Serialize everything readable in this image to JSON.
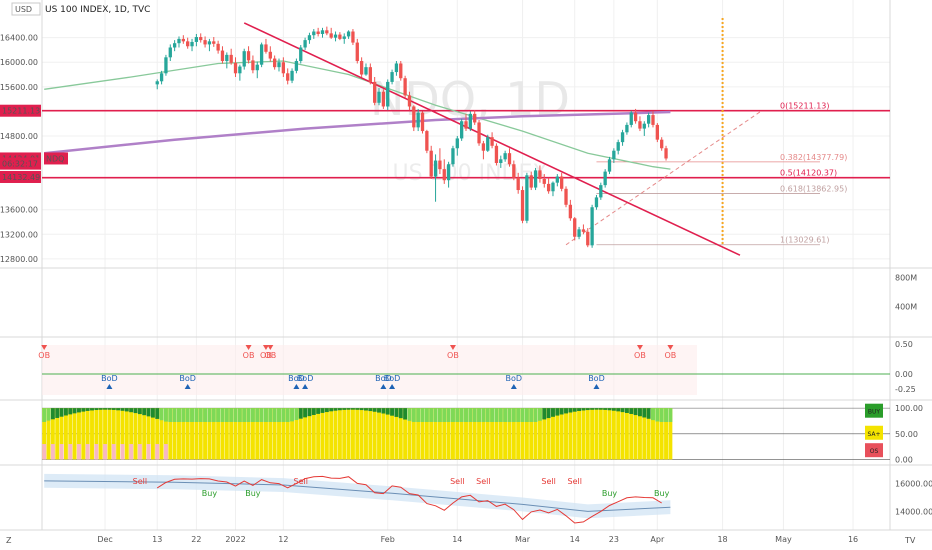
{
  "chart_data": {
    "type": "candlestick",
    "title": "US 100 INDEX, 1D, TVC",
    "watermark": [
      "NDQ, 1D",
      "US 100 INDEX"
    ],
    "currency": "USD",
    "ticker_tag": "NDQ",
    "price_axis": {
      "ticks": [
        "16400.00",
        "16000.00",
        "15600.00",
        "14800.00",
        "13600.00",
        "13200.00",
        "12800.00"
      ],
      "tick_values": [
        16400,
        16000,
        15600,
        14800,
        13600,
        13200,
        12800
      ],
      "ylim": [
        12700,
        16720
      ]
    },
    "price_tags": [
      {
        "text": "15211.13",
        "value": 15211.13,
        "color": "#e01f4e"
      },
      {
        "text": "14434.01",
        "value": 14434.01,
        "color": "#e01f4e"
      },
      {
        "text": "06:32:17",
        "value": 14350,
        "color": "#e01f4e"
      },
      {
        "text": "14132.49",
        "value": 14132.49,
        "color": "#e01f4e"
      }
    ],
    "x_axis": {
      "labels": [
        "Dec",
        "13",
        "22",
        "2022",
        "12",
        "Feb",
        "14",
        "Mar",
        "14",
        "23",
        "Apr",
        "18",
        "May",
        "16"
      ],
      "label_index": [
        14,
        26,
        35,
        44,
        55,
        79,
        95,
        110,
        122,
        131,
        141,
        156,
        170,
        186
      ],
      "n_bars": 144,
      "xlim": [
        0,
        195
      ]
    },
    "candles": [
      [
        15640,
        15720,
        15560,
        15690
      ],
      [
        15690,
        15860,
        15640,
        15820
      ],
      [
        15820,
        16120,
        15780,
        16080
      ],
      [
        16080,
        16290,
        16020,
        16240
      ],
      [
        16240,
        16360,
        16180,
        16310
      ],
      [
        16310,
        16420,
        16240,
        16380
      ],
      [
        16380,
        16440,
        16300,
        16340
      ],
      [
        16340,
        16400,
        16220,
        16260
      ],
      [
        16260,
        16380,
        16180,
        16330
      ],
      [
        16330,
        16460,
        16260,
        16410
      ],
      [
        16410,
        16470,
        16320,
        16360
      ],
      [
        16360,
        16420,
        16240,
        16290
      ],
      [
        16290,
        16380,
        16180,
        16340
      ],
      [
        16340,
        16410,
        16250,
        16300
      ],
      [
        16300,
        16350,
        16140,
        16190
      ],
      [
        16190,
        16260,
        15980,
        16020
      ],
      [
        16020,
        16160,
        15900,
        16120
      ],
      [
        16120,
        16220,
        15960,
        15990
      ],
      [
        15990,
        16080,
        15760,
        15820
      ],
      [
        15820,
        15960,
        15700,
        15930
      ],
      [
        15930,
        16220,
        15880,
        16180
      ],
      [
        16180,
        16260,
        15980,
        16030
      ],
      [
        16030,
        16110,
        15820,
        15870
      ],
      [
        15870,
        16010,
        15740,
        15960
      ],
      [
        15960,
        16320,
        15920,
        16290
      ],
      [
        16290,
        16380,
        16140,
        16170
      ],
      [
        16170,
        16260,
        16010,
        16060
      ],
      [
        16060,
        16110,
        15880,
        15920
      ],
      [
        15920,
        16060,
        15850,
        16000
      ],
      [
        16000,
        16080,
        15760,
        15820
      ],
      [
        15820,
        15900,
        15640,
        15700
      ],
      [
        15700,
        15900,
        15660,
        15860
      ],
      [
        15860,
        16060,
        15820,
        16020
      ],
      [
        16020,
        16280,
        15980,
        16240
      ],
      [
        16240,
        16400,
        16200,
        16360
      ],
      [
        16360,
        16480,
        16300,
        16440
      ],
      [
        16440,
        16540,
        16380,
        16500
      ],
      [
        16500,
        16560,
        16420,
        16460
      ],
      [
        16460,
        16560,
        16400,
        16520
      ],
      [
        16520,
        16580,
        16440,
        16470
      ],
      [
        16470,
        16560,
        16380,
        16400
      ],
      [
        16400,
        16500,
        16340,
        16450
      ],
      [
        16450,
        16490,
        16360,
        16380
      ],
      [
        16380,
        16470,
        16300,
        16420
      ],
      [
        16420,
        16520,
        16380,
        16500
      ],
      [
        16500,
        16540,
        16280,
        16320
      ],
      [
        16320,
        16380,
        15980,
        16020
      ],
      [
        16020,
        16080,
        15760,
        15800
      ],
      [
        15800,
        15980,
        15780,
        15920
      ],
      [
        15920,
        15980,
        15640,
        15680
      ],
      [
        15680,
        15760,
        15300,
        15340
      ],
      [
        15340,
        15580,
        15300,
        15520
      ],
      [
        15520,
        15560,
        15240,
        15280
      ],
      [
        15280,
        15720,
        15220,
        15680
      ],
      [
        15680,
        15880,
        15640,
        15840
      ],
      [
        15840,
        16020,
        15780,
        15980
      ],
      [
        15980,
        16020,
        15700,
        15740
      ],
      [
        15740,
        15780,
        15420,
        15460
      ],
      [
        15460,
        15520,
        15220,
        15280
      ],
      [
        15280,
        15300,
        14880,
        14940
      ],
      [
        14940,
        15240,
        14880,
        15180
      ],
      [
        15180,
        15200,
        14840,
        14880
      ],
      [
        14880,
        14900,
        14520,
        14560
      ],
      [
        14560,
        14640,
        14100,
        14140
      ],
      [
        14140,
        14500,
        13730,
        14400
      ],
      [
        14400,
        14600,
        14180,
        14260
      ],
      [
        14260,
        14420,
        14020,
        14080
      ],
      [
        14080,
        14380,
        13960,
        14340
      ],
      [
        14340,
        14640,
        14300,
        14600
      ],
      [
        14600,
        14800,
        14480,
        14760
      ],
      [
        14760,
        15080,
        14720,
        15040
      ],
      [
        15040,
        15160,
        14880,
        14920
      ],
      [
        14920,
        15200,
        14880,
        15160
      ],
      [
        15160,
        15220,
        14980,
        15020
      ],
      [
        15020,
        15060,
        14640,
        14680
      ],
      [
        14680,
        14720,
        14420,
        14560
      ],
      [
        14560,
        14820,
        14540,
        14780
      ],
      [
        14780,
        14860,
        14600,
        14640
      ],
      [
        14640,
        14680,
        14320,
        14360
      ],
      [
        14360,
        14480,
        14280,
        14420
      ],
      [
        14420,
        14560,
        14380,
        14520
      ],
      [
        14520,
        14600,
        14300,
        14340
      ],
      [
        14340,
        14400,
        14080,
        14120
      ],
      [
        14120,
        14200,
        13860,
        13920
      ],
      [
        13920,
        13980,
        13380,
        13420
      ],
      [
        13420,
        14200,
        13380,
        14160
      ],
      [
        14160,
        14220,
        13920,
        13960
      ],
      [
        13960,
        14280,
        13920,
        14240
      ],
      [
        14240,
        14320,
        14040,
        14100
      ],
      [
        14100,
        14180,
        13960,
        14020
      ],
      [
        14020,
        14120,
        13860,
        13900
      ],
      [
        13900,
        14060,
        13820,
        14040
      ],
      [
        14040,
        14180,
        13980,
        14140
      ],
      [
        14140,
        14200,
        13900,
        13940
      ],
      [
        13940,
        13980,
        13640,
        13680
      ],
      [
        13680,
        13760,
        13420,
        13460
      ],
      [
        13460,
        13480,
        13100,
        13160
      ],
      [
        13160,
        13320,
        13120,
        13280
      ],
      [
        13280,
        13360,
        13200,
        13240
      ],
      [
        13240,
        13300,
        12990,
        13020
      ],
      [
        13020,
        13680,
        12980,
        13640
      ],
      [
        13640,
        13840,
        13600,
        13800
      ],
      [
        13800,
        14040,
        13760,
        14000
      ],
      [
        14000,
        14260,
        13960,
        14220
      ],
      [
        14220,
        14460,
        14180,
        14420
      ],
      [
        14420,
        14600,
        14360,
        14560
      ],
      [
        14560,
        14740,
        14500,
        14700
      ],
      [
        14700,
        14900,
        14640,
        14860
      ],
      [
        14860,
        15020,
        14820,
        14980
      ],
      [
        14980,
        15210,
        14940,
        15180
      ],
      [
        15180,
        15240,
        15000,
        15040
      ],
      [
        15040,
        15120,
        14880,
        14920
      ],
      [
        14920,
        15040,
        14800,
        15000
      ],
      [
        15000,
        15180,
        14940,
        15140
      ],
      [
        15140,
        15200,
        14940,
        14980
      ],
      [
        14980,
        15010,
        14700,
        14740
      ],
      [
        14740,
        14780,
        14560,
        14600
      ],
      [
        14600,
        14640,
        14400,
        14434
      ]
    ],
    "candle_indices_start": 26,
    "sma_green": {
      "name": "",
      "points": [
        [
          0,
          15560
        ],
        [
          20,
          15760
        ],
        [
          40,
          15980
        ],
        [
          55,
          16020
        ],
        [
          70,
          15800
        ],
        [
          90,
          15300
        ],
        [
          110,
          14880
        ],
        [
          125,
          14520
        ],
        [
          140,
          14300
        ],
        [
          144,
          14260
        ]
      ]
    },
    "sma_purple": {
      "name": "",
      "points": [
        [
          0,
          14520
        ],
        [
          30,
          14740
        ],
        [
          60,
          14920
        ],
        [
          90,
          15060
        ],
        [
          110,
          15120
        ],
        [
          130,
          15160
        ],
        [
          144,
          15190
        ]
      ]
    },
    "trendline": {
      "points": [
        [
          46,
          16640
        ],
        [
          160,
          12860
        ]
      ],
      "color": "#e01f4e"
    },
    "fib_levels": [
      {
        "label": "0(15211.13)",
        "value": 15211.13,
        "color": "#e01f4e",
        "width": 1.6
      },
      {
        "label": "0.382(14377.79)",
        "value": 14377.79,
        "color": "#e58a8a",
        "width": 0.8
      },
      {
        "label": "0.5(14120.37)",
        "value": 14120.37,
        "color": "#e01f4e",
        "width": 1.6
      },
      {
        "label": "0.618(13862.95)",
        "value": 13862.95,
        "color": "#c0a0a0",
        "width": 0.8
      },
      {
        "label": "1(13029.61)",
        "value": 13029.61,
        "color": "#c0a0a0",
        "width": 0.8
      }
    ],
    "fib_x_start": 127,
    "volume_axis": {
      "ticks": [
        "800M",
        "400M"
      ],
      "tick_values": [
        800,
        400
      ],
      "ylim": [
        0,
        900
      ]
    },
    "osc1": {
      "ticks": [
        "0.50",
        "0.00",
        "-0.25"
      ],
      "tick_values": [
        0.5,
        0,
        -0.25
      ],
      "ylim": [
        -0.4,
        0.6
      ],
      "ob_labels": [
        {
          "text": "OB",
          "idx": 0
        },
        {
          "text": "OB",
          "idx": 47
        },
        {
          "text": "OB",
          "idx": 51
        },
        {
          "text": "OB",
          "idx": 52
        },
        {
          "text": "OB",
          "idx": 94
        },
        {
          "text": "OB",
          "idx": 137
        },
        {
          "text": "OB",
          "idx": 144
        }
      ],
      "bod_labels": [
        {
          "text": "BoD",
          "idx": 15
        },
        {
          "text": "BoD",
          "idx": 33
        },
        {
          "text": "BoD",
          "idx": 58
        },
        {
          "text": "BoD",
          "idx": 60
        },
        {
          "text": "BoD",
          "idx": 78
        },
        {
          "text": "BoD",
          "idx": 80
        },
        {
          "text": "BoD",
          "idx": 108
        },
        {
          "text": "BoD",
          "idx": 127
        }
      ]
    },
    "osc2": {
      "ticks": [
        "100.00",
        "50.00",
        "0.00"
      ],
      "tick_values": [
        100,
        50,
        0
      ],
      "ylim": [
        -5,
        110
      ],
      "markers": [
        {
          "text": "BUY",
          "color": "#2a9d2a",
          "value": 95
        },
        {
          "text": "SA+",
          "color": "#f4e300",
          "value": 52
        },
        {
          "text": "OS",
          "color": "#e8505b",
          "value": 18
        }
      ]
    },
    "osc3": {
      "ticks": [
        "16000.00",
        "14000.00"
      ],
      "tick_values": [
        16000,
        14000
      ],
      "ylim": [
        12800,
        17200
      ],
      "signals": [
        {
          "text": "Sell",
          "idx": 22,
          "type": "sell"
        },
        {
          "text": "Sell",
          "idx": 59,
          "type": "sell"
        },
        {
          "text": "Sell",
          "idx": 95,
          "type": "sell"
        },
        {
          "text": "Sell",
          "idx": 101,
          "type": "sell"
        },
        {
          "text": "Sell",
          "idx": 116,
          "type": "sell"
        },
        {
          "text": "Sell",
          "idx": 122,
          "type": "sell"
        },
        {
          "text": "Buy",
          "idx": 38,
          "type": "buy"
        },
        {
          "text": "Buy",
          "idx": 48,
          "type": "buy"
        },
        {
          "text": "Buy",
          "idx": 130,
          "type": "buy"
        },
        {
          "text": "Buy",
          "idx": 142,
          "type": "buy"
        }
      ]
    }
  },
  "ui": {
    "corner_left": "Z",
    "corner_right": "TV"
  }
}
